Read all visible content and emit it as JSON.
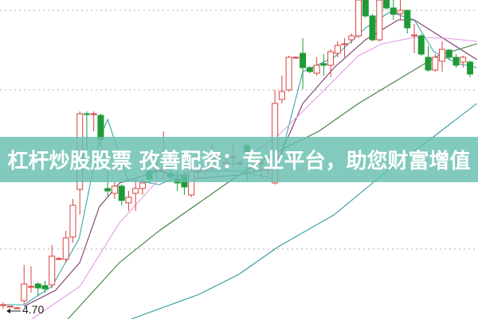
{
  "banner": {
    "text": "杠杆炒股股票 孜善配资：专业平台，助您财富增值"
  },
  "chart_data": {
    "type": "candlestick",
    "title": "",
    "low_marker_label": "4.70",
    "ylim": [
      4.59,
      8.6
    ],
    "grid": "horizontal-dotted",
    "colors": {
      "up": "#d8423f",
      "down": "#1e9a37",
      "ma_short": "#3aa6a6",
      "ma_mid": "#7a3a6e",
      "ma_long": "#e59ae6",
      "ma_longer": "#3f7f3f",
      "ma_longest": "#2f9aa0",
      "grid": "#b0b0b0"
    },
    "candles": [
      [
        4.76,
        4.8,
        4.72,
        4.77
      ],
      [
        4.75,
        4.76,
        4.74,
        4.75
      ],
      [
        4.73,
        4.74,
        4.72,
        4.73
      ],
      [
        4.82,
        5.27,
        4.78,
        5.03
      ],
      [
        5.0,
        5.25,
        4.92,
        5.0
      ],
      [
        5.03,
        5.05,
        4.88,
        4.98
      ],
      [
        5.01,
        5.07,
        4.92,
        4.97
      ],
      [
        5.02,
        5.52,
        4.98,
        5.38
      ],
      [
        5.35,
        5.37,
        5.33,
        5.35
      ],
      [
        5.34,
        5.7,
        5.3,
        5.61
      ],
      [
        5.62,
        6.1,
        5.55,
        6.02
      ],
      [
        6.22,
        7.2,
        5.9,
        7.17
      ],
      [
        7.17,
        7.2,
        6.7,
        7.16
      ],
      [
        7.16,
        7.2,
        6.95,
        7.17
      ],
      [
        7.15,
        7.17,
        6.75,
        6.85
      ],
      [
        6.23,
        6.45,
        6.12,
        6.2
      ],
      [
        6.17,
        6.32,
        6.1,
        6.26
      ],
      [
        6.26,
        6.28,
        6.02,
        6.08
      ],
      [
        6.05,
        6.2,
        5.95,
        6.12
      ],
      [
        6.17,
        6.35,
        5.95,
        6.23
      ],
      [
        6.23,
        6.35,
        6.15,
        6.3
      ],
      [
        6.45,
        6.5,
        6.3,
        6.35
      ],
      [
        6.46,
        6.6,
        6.35,
        6.46
      ],
      [
        6.46,
        6.95,
        6.35,
        6.47
      ],
      [
        6.42,
        6.5,
        6.35,
        6.38
      ],
      [
        6.35,
        6.45,
        6.2,
        6.3
      ],
      [
        6.4,
        6.45,
        6.15,
        6.25
      ],
      [
        6.15,
        6.48,
        6.12,
        6.45
      ],
      [
        6.45,
        6.52,
        6.35,
        6.45
      ],
      [
        6.48,
        6.6,
        6.4,
        6.48
      ],
      [
        6.6,
        6.8,
        6.45,
        6.67
      ],
      [
        6.62,
        6.64,
        6.6,
        6.62
      ],
      [
        6.54,
        6.65,
        6.45,
        6.56
      ],
      [
        6.62,
        6.8,
        6.5,
        6.63
      ],
      [
        6.55,
        6.58,
        6.52,
        6.55
      ],
      [
        6.77,
        6.8,
        6.32,
        6.68
      ],
      [
        6.5,
        6.55,
        6.45,
        6.5
      ],
      [
        6.55,
        6.62,
        6.35,
        6.55
      ],
      [
        6.46,
        6.5,
        6.4,
        6.47
      ],
      [
        6.3,
        7.47,
        6.28,
        7.3
      ],
      [
        7.35,
        7.65,
        7.3,
        7.45
      ],
      [
        7.47,
        7.9,
        7.45,
        7.88
      ],
      [
        7.88,
        7.89,
        7.87,
        7.88
      ],
      [
        7.93,
        8.12,
        7.48,
        7.75
      ],
      [
        7.75,
        7.77,
        7.68,
        7.7
      ],
      [
        7.68,
        7.88,
        7.65,
        7.78
      ],
      [
        7.8,
        7.92,
        7.65,
        7.78
      ],
      [
        7.78,
        7.98,
        7.63,
        7.95
      ],
      [
        7.93,
        8.08,
        7.88,
        8.03
      ],
      [
        8.05,
        8.12,
        7.88,
        8.05
      ],
      [
        8.1,
        8.18,
        8.05,
        8.15
      ],
      [
        8.15,
        8.6,
        8.12,
        8.6
      ],
      [
        8.6,
        8.6,
        8.38,
        8.4
      ],
      [
        8.4,
        8.42,
        8.08,
        8.1
      ],
      [
        8.1,
        8.6,
        8.08,
        8.6
      ],
      [
        8.6,
        8.6,
        8.48,
        8.5
      ],
      [
        8.5,
        8.6,
        8.35,
        8.42
      ],
      [
        8.43,
        8.6,
        8.35,
        8.47
      ],
      [
        8.47,
        8.48,
        8.18,
        8.25
      ],
      [
        8.16,
        8.3,
        7.93,
        8.16
      ],
      [
        8.15,
        8.17,
        7.9,
        7.92
      ],
      [
        7.88,
        8.02,
        7.7,
        7.72
      ],
      [
        7.72,
        7.92,
        7.7,
        7.88
      ],
      [
        7.83,
        8.08,
        7.7,
        7.98
      ],
      [
        7.97,
        7.98,
        7.85,
        7.88
      ],
      [
        7.88,
        7.92,
        7.75,
        7.78
      ],
      [
        7.82,
        7.9,
        7.75,
        7.88
      ],
      [
        7.82,
        7.84,
        7.63,
        7.67
      ]
    ],
    "moving_averages": [
      {
        "color_key": "ma_short",
        "points": [
          [
            0,
            4.77
          ],
          [
            3,
            4.77
          ],
          [
            7,
            5.0
          ],
          [
            10.9,
            5.6
          ],
          [
            13.8,
            6.85
          ],
          [
            15,
            7.1
          ],
          [
            17.8,
            6.35
          ],
          [
            22.4,
            6.28
          ],
          [
            27,
            6.45
          ],
          [
            33.8,
            6.45
          ],
          [
            39,
            6.35
          ],
          [
            43,
            7.7
          ],
          [
            47.5,
            7.88
          ],
          [
            52,
            8.25
          ],
          [
            55.5,
            8.45
          ],
          [
            59,
            8.35
          ],
          [
            61.8,
            7.95
          ],
          [
            65.3,
            7.8
          ],
          [
            68,
            7.75
          ]
        ]
      },
      {
        "color_key": "ma_mid",
        "points": [
          [
            3,
            4.75
          ],
          [
            7.5,
            4.95
          ],
          [
            11,
            5.3
          ],
          [
            13.8,
            6.0
          ],
          [
            16.7,
            6.3
          ],
          [
            22.4,
            6.45
          ],
          [
            27,
            6.35
          ],
          [
            33.8,
            6.4
          ],
          [
            39,
            6.5
          ],
          [
            43,
            7.3
          ],
          [
            47.5,
            7.75
          ],
          [
            52,
            8.1
          ],
          [
            56.7,
            8.35
          ],
          [
            59,
            8.35
          ],
          [
            63.5,
            8.1
          ],
          [
            68,
            7.85
          ]
        ]
      },
      {
        "color_key": "ma_long",
        "points": [
          [
            4.1,
            4.59
          ],
          [
            11,
            5.0
          ],
          [
            16.7,
            5.8
          ],
          [
            22.4,
            6.35
          ],
          [
            28.1,
            6.45
          ],
          [
            33.8,
            6.55
          ],
          [
            39.5,
            6.9
          ],
          [
            45.3,
            7.4
          ],
          [
            51,
            7.9
          ],
          [
            54.4,
            8.05
          ],
          [
            59,
            8.13
          ],
          [
            63.5,
            8.12
          ],
          [
            68,
            8.08
          ]
        ]
      },
      {
        "color_key": "ma_longer",
        "points": [
          [
            9.3,
            4.59
          ],
          [
            16.7,
            5.3
          ],
          [
            22.4,
            5.7
          ],
          [
            28.1,
            6.05
          ],
          [
            33.8,
            6.4
          ],
          [
            39.5,
            6.7
          ],
          [
            45.3,
            6.95
          ],
          [
            51,
            7.3
          ],
          [
            56.7,
            7.6
          ],
          [
            62.4,
            7.9
          ],
          [
            68,
            8.05
          ]
        ]
      },
      {
        "color_key": "ma_longest",
        "points": [
          [
            18.4,
            4.59
          ],
          [
            28.1,
            4.9
          ],
          [
            33.8,
            5.15
          ],
          [
            39.5,
            5.5
          ],
          [
            47.5,
            5.9
          ],
          [
            54.4,
            6.4
          ],
          [
            61.3,
            6.85
          ],
          [
            68,
            7.3
          ]
        ]
      }
    ]
  }
}
